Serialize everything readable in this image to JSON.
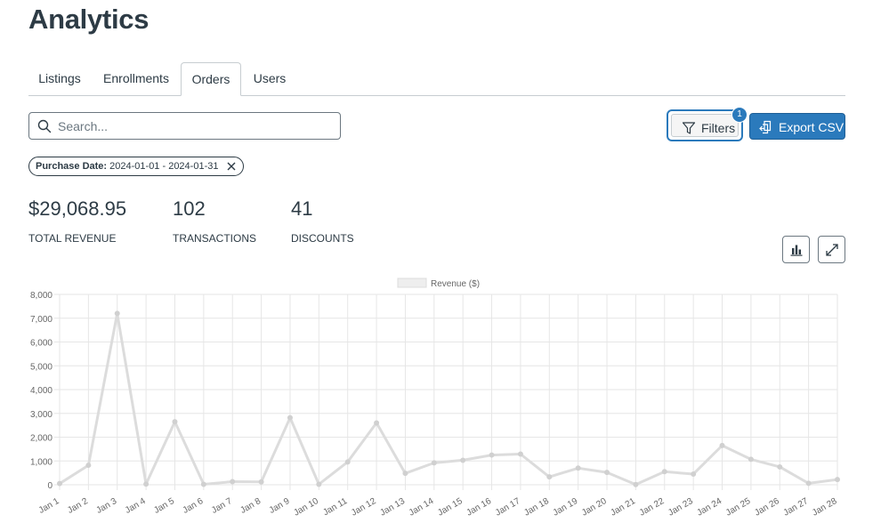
{
  "page": {
    "title": "Analytics"
  },
  "tabs": [
    {
      "label": "Listings",
      "active": false
    },
    {
      "label": "Enrollments",
      "active": false
    },
    {
      "label": "Orders",
      "active": true
    },
    {
      "label": "Users",
      "active": false
    }
  ],
  "search": {
    "placeholder": "Search...",
    "value": ""
  },
  "toolbar": {
    "filters_label": "Filters",
    "filters_count": "1",
    "export_label": "Export CSV"
  },
  "active_filter": {
    "name": "Purchase Date:",
    "value": "2024-01-01 - 2024-01-31"
  },
  "stats": [
    {
      "value": "$29,068.95",
      "label": "TOTAL REVENUE"
    },
    {
      "value": "102",
      "label": "TRANSACTIONS"
    },
    {
      "value": "41",
      "label": "DISCOUNTS"
    }
  ],
  "icons": {
    "search": "search-icon",
    "filter": "filter-icon",
    "export": "export-icon",
    "close": "close-icon",
    "bar_chart": "bar-chart-icon",
    "expand": "expand-icon"
  },
  "colors": {
    "primary": "#2b7abc",
    "text": "#2d3b45",
    "series_line": "#dcdcdc"
  },
  "chart_data": {
    "type": "line",
    "x": [
      "Jan 1",
      "Jan 2",
      "Jan 3",
      "Jan 4",
      "Jan 5",
      "Jan 6",
      "Jan 7",
      "Jan 8",
      "Jan 9",
      "Jan 10",
      "Jan 11",
      "Jan 12",
      "Jan 13",
      "Jan 14",
      "Jan 15",
      "Jan 16",
      "Jan 17",
      "Jan 18",
      "Jan 19",
      "Jan 20",
      "Jan 21",
      "Jan 22",
      "Jan 23",
      "Jan 24",
      "Jan 25",
      "Jan 26",
      "Jan 27",
      "Jan 28"
    ],
    "series": [
      {
        "name": "Revenue ($)",
        "values": [
          50,
          820,
          7200,
          30,
          2650,
          20,
          130,
          120,
          2820,
          20,
          960,
          2600,
          480,
          920,
          1030,
          1250,
          1290,
          330,
          700,
          520,
          10,
          550,
          450,
          1650,
          1070,
          750,
          60,
          220
        ]
      }
    ],
    "ylim": [
      0,
      8000
    ],
    "yticks": [
      "0",
      "1,000",
      "2,000",
      "3,000",
      "4,000",
      "5,000",
      "6,000",
      "7,000",
      "8,000"
    ],
    "grid": true,
    "legend": "top-center"
  }
}
